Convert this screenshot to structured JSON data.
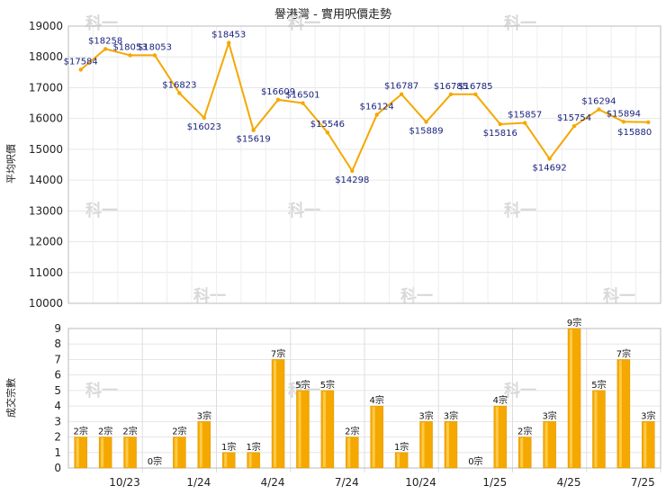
{
  "chart_data": [
    {
      "type": "line",
      "title": "譽港灣 - 實用呎價走勢",
      "ylabel": "平均呎價",
      "ylim": [
        10000,
        19000
      ],
      "yticks": [
        10000,
        11000,
        12000,
        13000,
        14000,
        15000,
        16000,
        17000,
        18000,
        19000
      ],
      "grid": true,
      "color": "#f5a800",
      "label_color": "#1a237e",
      "points": [
        {
          "x": 0,
          "value": 17584,
          "label": "$17584"
        },
        {
          "x": 1,
          "value": 18258,
          "label": "$18258"
        },
        {
          "x": 2,
          "value": 18053,
          "label": "$18053"
        },
        {
          "x": 3,
          "value": 18053,
          "label": "$18053"
        },
        {
          "x": 4,
          "value": 16823,
          "label": "$16823"
        },
        {
          "x": 5,
          "value": 16023,
          "label": "$16023"
        },
        {
          "x": 6,
          "value": 18453,
          "label": "$18453"
        },
        {
          "x": 7,
          "value": 15619,
          "label": "$15619"
        },
        {
          "x": 8,
          "value": 16609,
          "label": "$16609"
        },
        {
          "x": 9,
          "value": 16501,
          "label": "$16501"
        },
        {
          "x": 10,
          "value": 15546,
          "label": "$15546"
        },
        {
          "x": 11,
          "value": 14298,
          "label": "$14298"
        },
        {
          "x": 12,
          "value": 16124,
          "label": "$16124"
        },
        {
          "x": 13,
          "value": 16787,
          "label": "$16787"
        },
        {
          "x": 14,
          "value": 15889,
          "label": "$15889"
        },
        {
          "x": 15,
          "value": 16785,
          "label": "$16785"
        },
        {
          "x": 16,
          "value": 16785,
          "label": "$16785"
        },
        {
          "x": 17,
          "value": 15816,
          "label": "$15816"
        },
        {
          "x": 18,
          "value": 15857,
          "label": "$15857"
        },
        {
          "x": 19,
          "value": 14692,
          "label": "$14692"
        },
        {
          "x": 20,
          "value": 15754,
          "label": "$15754"
        },
        {
          "x": 21,
          "value": 16294,
          "label": "$16294"
        },
        {
          "x": 22,
          "value": 15894,
          "label": "$15894"
        },
        {
          "x": 23,
          "value": 15880,
          "label": "$15880"
        }
      ]
    },
    {
      "type": "bar",
      "ylabel": "成交宗數",
      "ylim": [
        0,
        9
      ],
      "yticks": [
        0,
        1,
        2,
        3,
        4,
        5,
        6,
        7,
        8,
        9
      ],
      "grid": true,
      "color": "#f5a800",
      "values": [
        2,
        2,
        2,
        0,
        2,
        3,
        1,
        1,
        7,
        5,
        5,
        2,
        4,
        1,
        3,
        3,
        0,
        4,
        2,
        3,
        9,
        5,
        7,
        3
      ],
      "labels": [
        "2宗",
        "2宗",
        "2宗",
        "0宗",
        "2宗",
        "3宗",
        "1宗",
        "1宗",
        "7宗",
        "5宗",
        "5宗",
        "2宗",
        "4宗",
        "1宗",
        "3宗",
        "3宗",
        "0宗",
        "4宗",
        "2宗",
        "3宗",
        "9宗",
        "5宗",
        "7宗",
        "3宗"
      ],
      "xticks": [
        {
          "index": 2,
          "label": "10/23"
        },
        {
          "index": 5,
          "label": "1/24"
        },
        {
          "index": 8,
          "label": "4/24"
        },
        {
          "index": 11,
          "label": "7/24"
        },
        {
          "index": 14,
          "label": "10/24"
        },
        {
          "index": 17,
          "label": "1/25"
        },
        {
          "index": 20,
          "label": "4/25"
        },
        {
          "index": 23,
          "label": "7/25"
        }
      ]
    }
  ]
}
